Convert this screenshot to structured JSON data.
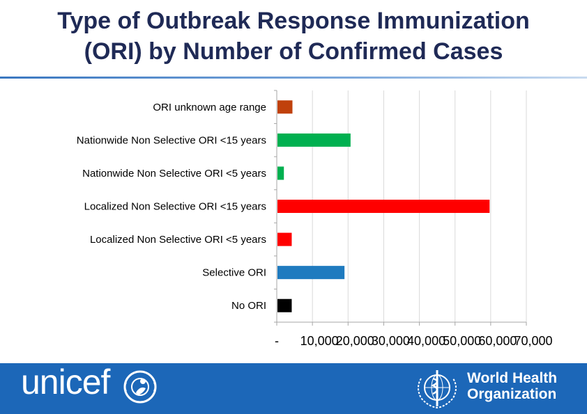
{
  "header": {
    "title_line1": "Type of Outbreak Response Immunization",
    "title_line2": "(ORI) by Number of Confirmed Cases"
  },
  "chart_data": {
    "type": "bar",
    "orientation": "horizontal",
    "categories": [
      "ORI unknown age range",
      "Nationwide Non Selective ORI <15 years",
      "Nationwide Non Selective ORI <5 years",
      "Localized Non Selective ORI <15 years",
      "Localized Non Selective ORI <5 years",
      "Selective ORI",
      "No ORI"
    ],
    "values": [
      4200,
      20500,
      1800,
      59500,
      4000,
      18800,
      4000
    ],
    "colors": [
      "#c0410c",
      "#00b050",
      "#00b050",
      "#ff0000",
      "#ff0000",
      "#1f7bbf",
      "#000000"
    ],
    "xticks": [
      "-",
      "10,000",
      "20,000",
      "30,000",
      "40,000",
      "50,000",
      "60,000",
      "70,000"
    ],
    "xlim": [
      0,
      70000
    ],
    "title": "",
    "xlabel": "",
    "ylabel": "",
    "grid": "vertical"
  },
  "footer": {
    "unicef_text": "unicef",
    "who_line1": "World Health",
    "who_line2": "Organization",
    "background": "#1c67b8"
  }
}
